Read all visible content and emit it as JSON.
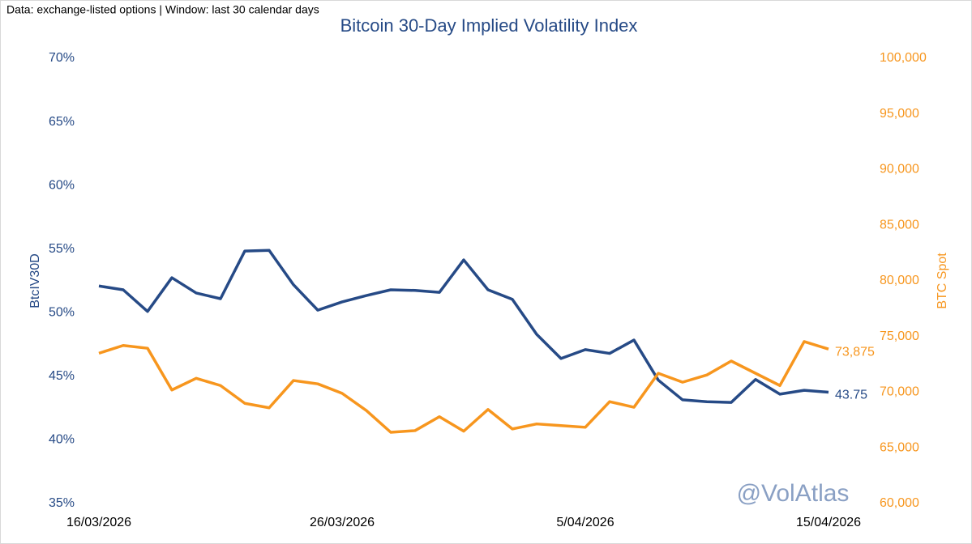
{
  "chart_data": {
    "type": "line",
    "title": "Bitcoin 30-Day Implied Volatility Index",
    "subtitle": "Data: exchange-listed options | Window: last 30 calendar days",
    "y_label": "BtcIV30D",
    "y2_label": "BTC Spot",
    "watermark": "@VolAtlas",
    "categories": [
      "16/03/2026",
      null,
      null,
      null,
      null,
      null,
      null,
      null,
      null,
      null,
      "26/03/2026",
      null,
      null,
      null,
      null,
      null,
      null,
      null,
      null,
      null,
      "5/04/2026",
      null,
      null,
      null,
      null,
      null,
      null,
      null,
      null,
      null,
      "15/04/2026"
    ],
    "series": [
      {
        "name": "BtcIV30D",
        "color": "#264a86",
        "axis": "y",
        "values": [
          52.1,
          51.8,
          50.1,
          52.75,
          51.55,
          51.1,
          54.85,
          54.9,
          52.2,
          50.2,
          50.85,
          51.35,
          51.8,
          51.75,
          51.6,
          54.15,
          51.8,
          51.05,
          48.3,
          46.4,
          47.1,
          46.8,
          47.85,
          44.7,
          43.15,
          43.0,
          42.95,
          44.75,
          43.6,
          43.9,
          43.75
        ],
        "value_labels": [
          null,
          null,
          null,
          null,
          null,
          null,
          null,
          null,
          null,
          null,
          null,
          null,
          null,
          null,
          null,
          null,
          null,
          null,
          null,
          null,
          null,
          null,
          null,
          null,
          null,
          null,
          null,
          null,
          null,
          null,
          "43.75"
        ]
      },
      {
        "name": "BTC Spot",
        "color": "#f7961e",
        "axis": "y2",
        "values": [
          73500,
          74200,
          73950,
          70200,
          71250,
          70600,
          69000,
          68600,
          71050,
          70750,
          69900,
          68350,
          66400,
          66550,
          67800,
          66500,
          68450,
          66700,
          67150,
          67000,
          66850,
          69150,
          68650,
          71700,
          70900,
          71550,
          72800,
          71700,
          70600,
          74550,
          73875
        ],
        "value_labels": [
          null,
          null,
          null,
          null,
          null,
          null,
          null,
          null,
          null,
          null,
          null,
          null,
          null,
          null,
          null,
          null,
          null,
          null,
          null,
          null,
          null,
          null,
          null,
          null,
          null,
          null,
          null,
          null,
          null,
          null,
          "73,875"
        ]
      }
    ],
    "ylim": [
      35,
      70
    ],
    "yticks": [
      {
        "value": 35,
        "label": "35%"
      },
      {
        "value": 40,
        "label": "40%"
      },
      {
        "value": 45,
        "label": "45%"
      },
      {
        "value": 50,
        "label": "50%"
      },
      {
        "value": 55,
        "label": "55%"
      },
      {
        "value": 60,
        "label": "60%"
      },
      {
        "value": 65,
        "label": "65%"
      },
      {
        "value": 70,
        "label": "70%"
      }
    ],
    "y2lim": [
      60000,
      100000
    ],
    "y2ticks": [
      {
        "value": 60000,
        "label": "60,000"
      },
      {
        "value": 65000,
        "label": "65,000"
      },
      {
        "value": 70000,
        "label": "70,000"
      },
      {
        "value": 75000,
        "label": "75,000"
      },
      {
        "value": 80000,
        "label": "80,000"
      },
      {
        "value": 85000,
        "label": "85,000"
      },
      {
        "value": 90000,
        "label": "90,000"
      },
      {
        "value": 95000,
        "label": "95,000"
      },
      {
        "value": 100000,
        "label": "100,000"
      }
    ],
    "grid": false
  }
}
